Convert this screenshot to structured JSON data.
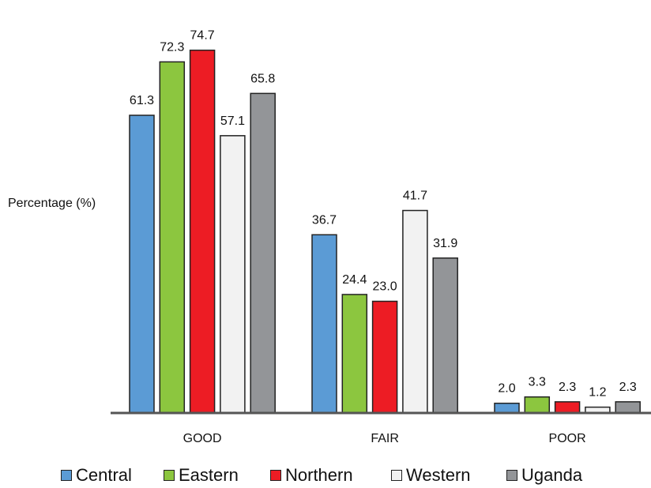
{
  "chart_data": {
    "type": "bar",
    "ylabel": "Percentage (%)",
    "categories": [
      "GOOD",
      "FAIR",
      "POOR"
    ],
    "series": [
      {
        "name": "Central",
        "color": "#5b9bd5",
        "values": [
          61.3,
          36.7,
          2.0
        ],
        "labels": [
          "61.3",
          "36.7",
          "2.0"
        ]
      },
      {
        "name": "Eastern",
        "color": "#8cc63f",
        "values": [
          72.3,
          24.4,
          3.3
        ],
        "labels": [
          "72.3",
          "24.4",
          "3.3"
        ]
      },
      {
        "name": "Northern",
        "color": "#ed1c24",
        "values": [
          74.7,
          23.0,
          2.3
        ],
        "labels": [
          "74.7",
          "23.0",
          "2.3"
        ]
      },
      {
        "name": "Western",
        "color": "#f2f2f2",
        "values": [
          57.1,
          41.7,
          1.2
        ],
        "labels": [
          "57.1",
          "41.7",
          "1.2"
        ]
      },
      {
        "name": "Uganda",
        "color": "#939598",
        "values": [
          65.8,
          31.9,
          2.3
        ],
        "labels": [
          "65.8",
          "31.9",
          "2.3"
        ]
      }
    ],
    "ylim": [
      0,
      80
    ],
    "grid": false,
    "legend_position": "bottom"
  }
}
